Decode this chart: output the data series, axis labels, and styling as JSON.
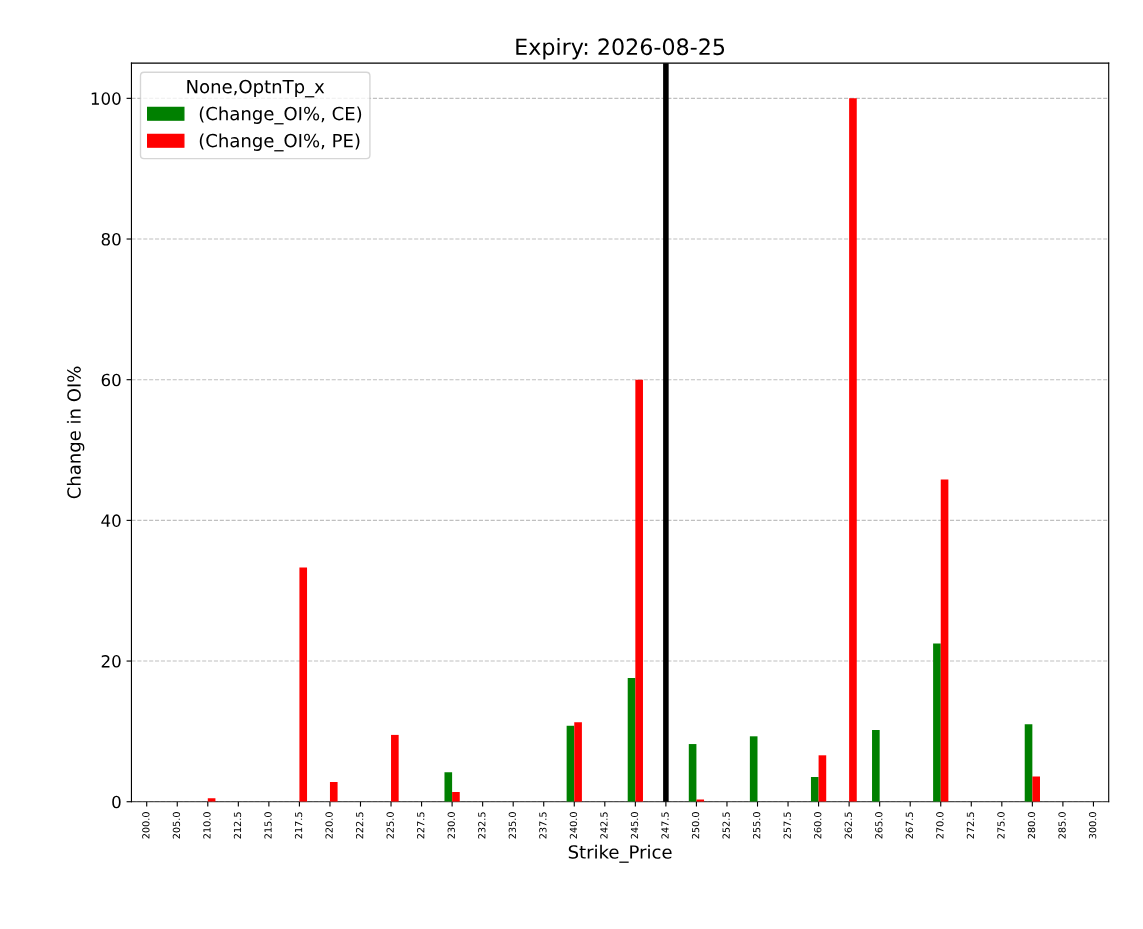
{
  "chart_data": {
    "type": "bar",
    "title": "Expiry: 2026-08-25",
    "xlabel": "Strike_Price",
    "ylabel": "Change in OI%",
    "legend_title": "None,OptnTp_x",
    "categories": [
      "200.0",
      "205.0",
      "210.0",
      "212.5",
      "215.0",
      "217.5",
      "220.0",
      "222.5",
      "225.0",
      "227.5",
      "230.0",
      "232.5",
      "235.0",
      "237.5",
      "240.0",
      "242.5",
      "245.0",
      "247.5",
      "250.0",
      "252.5",
      "255.0",
      "257.5",
      "260.0",
      "262.5",
      "265.0",
      "267.5",
      "270.0",
      "272.5",
      "275.0",
      "280.0",
      "285.0",
      "300.0"
    ],
    "series": [
      {
        "name": "(Change_OI%, CE)",
        "color": "#008000",
        "values": [
          0,
          0,
          0,
          0,
          0,
          0,
          0,
          0,
          0,
          0,
          4.2,
          0,
          0,
          0,
          10.8,
          0,
          17.6,
          0,
          8.2,
          0,
          9.3,
          0,
          3.5,
          0,
          10.2,
          0,
          22.5,
          0,
          0,
          11.0,
          0,
          0
        ]
      },
      {
        "name": "(Change_OI%, PE)",
        "color": "#ff0000",
        "values": [
          0,
          0,
          0.5,
          0,
          0,
          33.3,
          2.8,
          0,
          9.5,
          0,
          1.4,
          0,
          0,
          0,
          11.3,
          0,
          60,
          0,
          0.3,
          0,
          0,
          0,
          6.6,
          100,
          0,
          0,
          45.8,
          0,
          0,
          3.6,
          0,
          0
        ]
      }
    ],
    "ylim": [
      0,
      105
    ],
    "yticks": [
      0,
      20,
      40,
      60,
      80,
      100
    ],
    "grid": "y",
    "legend": "top left",
    "ref_lines": [
      {
        "axis": "x",
        "value": "247.5",
        "color": "#000000"
      }
    ]
  }
}
